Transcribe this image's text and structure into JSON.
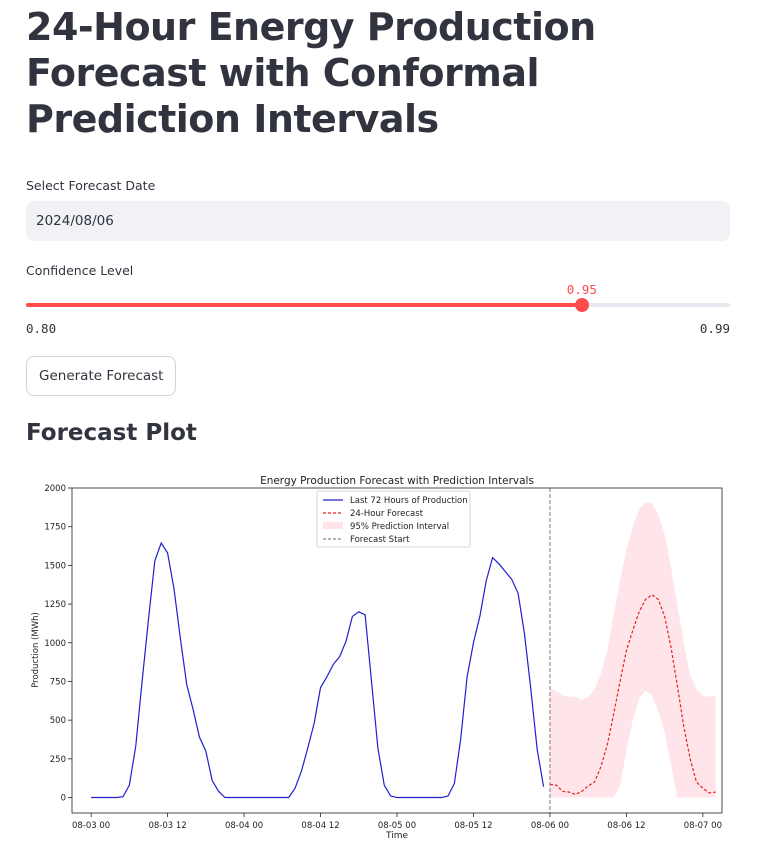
{
  "page": {
    "title": "24-Hour Energy Production Forecast with Conformal Prediction Intervals",
    "date_label": "Select Forecast Date",
    "date_value": "2024/08/06",
    "confidence_label": "Confidence Level",
    "confidence_value": "0.95",
    "confidence_min": "0.80",
    "confidence_max": "0.99",
    "confidence_fraction": 0.7895,
    "generate_label": "Generate Forecast",
    "section_title": "Forecast Plot"
  },
  "colors": {
    "accent": "#ff4b4b",
    "history_line": "#2020d0",
    "forecast_line": "#e8201f",
    "interval_fill": "#ffe4e9",
    "forecast_start_line": "#888888"
  },
  "chart_data": {
    "type": "line",
    "title": "Energy Production Forecast with Prediction Intervals",
    "xlabel": "Time",
    "ylabel": "Production (MWh)",
    "xlim": [
      "2024-08-02 21:00",
      "2024-08-07 03:00"
    ],
    "ylim": [
      -100,
      2000
    ],
    "x_ticks": [
      {
        "t": "2024-08-03 00:00",
        "label": "08-03 00"
      },
      {
        "t": "2024-08-03 12:00",
        "label": "08-03 12"
      },
      {
        "t": "2024-08-04 00:00",
        "label": "08-04 00"
      },
      {
        "t": "2024-08-04 12:00",
        "label": "08-04 12"
      },
      {
        "t": "2024-08-05 00:00",
        "label": "08-05 00"
      },
      {
        "t": "2024-08-05 12:00",
        "label": "08-05 12"
      },
      {
        "t": "2024-08-06 00:00",
        "label": "08-06 00"
      },
      {
        "t": "2024-08-06 12:00",
        "label": "08-06 12"
      },
      {
        "t": "2024-08-07 00:00",
        "label": "08-07 00"
      }
    ],
    "y_ticks": [
      0,
      250,
      500,
      750,
      1000,
      1250,
      1500,
      1750,
      2000
    ],
    "legend_position": "upper-center",
    "forecast_start": "2024-08-06 00:00",
    "series": [
      {
        "name": "Last 72 Hours of Production",
        "style": "solid",
        "start": "2024-08-03 00:00",
        "values": [
          0,
          0,
          0,
          0,
          0,
          5,
          80,
          330,
          750,
          1150,
          1530,
          1645,
          1580,
          1350,
          1030,
          730,
          570,
          390,
          300,
          110,
          40,
          0,
          0,
          0,
          0,
          0,
          0,
          0,
          0,
          0,
          0,
          0,
          60,
          170,
          320,
          480,
          710,
          780,
          860,
          910,
          1010,
          1170,
          1200,
          1180,
          750,
          320,
          80,
          10,
          0,
          0,
          0,
          0,
          0,
          0,
          0,
          0,
          10,
          90,
          380,
          780,
          1000,
          1170,
          1400,
          1550,
          1510,
          1460,
          1410,
          1320,
          1060,
          700,
          310,
          70
        ]
      },
      {
        "name": "24-Hour Forecast",
        "style": "dashed",
        "start": "2024-08-06 00:00",
        "values": [
          85,
          80,
          40,
          35,
          20,
          40,
          75,
          100,
          200,
          340,
          540,
          750,
          950,
          1080,
          1200,
          1280,
          1310,
          1280,
          1170,
          970,
          720,
          460,
          250,
          100,
          60,
          30,
          35
        ]
      },
      {
        "name": "95% Prediction Interval",
        "style": "band",
        "start": "2024-08-06 00:00",
        "upper": [
          700,
          690,
          660,
          650,
          650,
          630,
          650,
          700,
          800,
          950,
          1180,
          1400,
          1600,
          1750,
          1860,
          1910,
          1900,
          1830,
          1700,
          1490,
          1240,
          1000,
          790,
          700,
          660,
          650,
          660
        ],
        "lower": [
          0,
          0,
          0,
          0,
          0,
          0,
          0,
          0,
          0,
          0,
          0,
          80,
          300,
          500,
          640,
          690,
          660,
          560,
          420,
          210,
          0,
          0,
          0,
          0,
          0,
          0,
          0
        ]
      },
      {
        "name": "Forecast Start",
        "style": "vertical-dashed"
      }
    ]
  }
}
